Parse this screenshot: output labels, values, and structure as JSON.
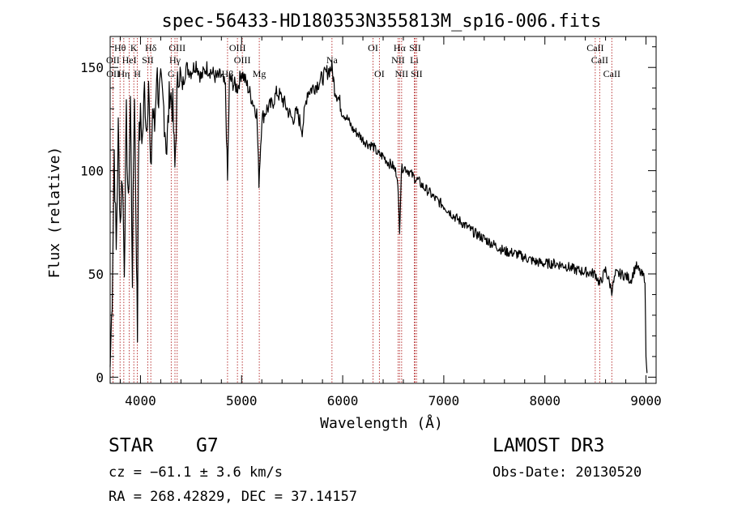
{
  "chart_data": {
    "type": "line",
    "title": "spec-56433-HD180353N355813M_sp16-006.fits",
    "xlabel": "Wavelength (Å)",
    "ylabel": "Flux (relative)",
    "xlim": [
      3700,
      9100
    ],
    "ylim": [
      -3,
      165
    ],
    "xticks": [
      4000,
      5000,
      6000,
      7000,
      8000,
      9000
    ],
    "xtick_labels": [
      "4000",
      "5000",
      "6000",
      "7000",
      "8000",
      "9000"
    ],
    "yticks": [
      0,
      50,
      100,
      150
    ],
    "ytick_labels": [
      "0",
      "50",
      "100",
      "150"
    ],
    "series": [
      {
        "name": "spectrum",
        "x": [
          3700,
          3720,
          3740,
          3760,
          3780,
          3800,
          3820,
          3840,
          3860,
          3880,
          3900,
          3920,
          3940,
          3960,
          3970,
          3980,
          4000,
          4020,
          4040,
          4060,
          4080,
          4100,
          4120,
          4140,
          4160,
          4180,
          4200,
          4230,
          4260,
          4290,
          4320,
          4340,
          4360,
          4380,
          4410,
          4450,
          4500,
          4550,
          4600,
          4650,
          4700,
          4750,
          4800,
          4840,
          4861,
          4880,
          4920,
          4960,
          5000,
          5050,
          5100,
          5150,
          5172,
          5200,
          5250,
          5300,
          5350,
          5400,
          5450,
          5500,
          5550,
          5600,
          5650,
          5700,
          5750,
          5800,
          5850,
          5893,
          5920,
          5960,
          6000,
          6050,
          6100,
          6150,
          6200,
          6250,
          6300,
          6350,
          6400,
          6450,
          6500,
          6540,
          6563,
          6580,
          6600,
          6650,
          6700,
          6750,
          6800,
          6850,
          6900,
          6950,
          7000,
          7100,
          7200,
          7300,
          7400,
          7500,
          7600,
          7700,
          7800,
          7900,
          8000,
          8100,
          8200,
          8300,
          8400,
          8500,
          8542,
          8600,
          8662,
          8700,
          8750,
          8800,
          8850,
          8900,
          8950,
          8990,
          9000,
          9010
        ],
        "y": [
          5,
          40,
          110,
          60,
          120,
          75,
          100,
          55,
          125,
          80,
          135,
          50,
          140,
          60,
          20,
          110,
          125,
          115,
          140,
          120,
          145,
          95,
          130,
          120,
          150,
          135,
          140,
          130,
          110,
          140,
          130,
          100,
          135,
          150,
          140,
          150,
          148,
          152,
          145,
          150,
          148,
          145,
          146,
          140,
          95,
          145,
          142,
          140,
          148,
          142,
          135,
          128,
          95,
          125,
          130,
          132,
          138,
          135,
          130,
          125,
          128,
          120,
          138,
          140,
          142,
          145,
          148,
          150,
          140,
          135,
          128,
          125,
          120,
          118,
          115,
          113,
          112,
          108,
          107,
          104,
          102,
          98,
          72,
          100,
          102,
          100,
          97,
          95,
          92,
          90,
          87,
          85,
          83,
          78,
          74,
          70,
          67,
          64,
          61,
          60,
          58,
          56,
          55,
          55,
          54,
          52,
          51,
          50,
          45,
          52,
          42,
          50,
          50,
          49,
          47,
          54,
          50,
          48,
          10,
          2
        ]
      }
    ],
    "lines": [
      {
        "name": "H&#952;",
        "label": "Hθ",
        "x": 3798,
        "row": 1
      },
      {
        "name": "OII",
        "label": "OII",
        "x": 3727,
        "row": 2
      },
      {
        "name": "OII b",
        "label": "OII",
        "x": 3729,
        "row": 3
      },
      {
        "name": "K",
        "label": "K",
        "x": 3934,
        "row": 1
      },
      {
        "name": "HeI",
        "label": "HeI",
        "x": 3889,
        "row": 2
      },
      {
        "name": "Hη",
        "label": "Hη",
        "x": 3835,
        "row": 3
      },
      {
        "name": "H",
        "label": "H",
        "x": 3969,
        "row": 3
      },
      {
        "name": "Hδ",
        "label": "Hδ",
        "x": 4102,
        "row": 1
      },
      {
        "name": "SII",
        "label": "SII",
        "x": 4072,
        "row": 2
      },
      {
        "name": "OIII",
        "label": "OIII",
        "x": 4363,
        "row": 1
      },
      {
        "name": "Hγ",
        "label": "Hγ",
        "x": 4341,
        "row": 2
      },
      {
        "name": "G",
        "label": "G",
        "x": 4304,
        "row": 3
      },
      {
        "name": "OIII 4959",
        "label": "OIII",
        "x": 4959,
        "row": 1
      },
      {
        "name": "OIII 5007",
        "label": "OIII",
        "x": 5007,
        "row": 2
      },
      {
        "name": "Hβ",
        "label": "Hβ",
        "x": 4861,
        "row": 3
      },
      {
        "name": "Mg",
        "label": "Mg",
        "x": 5175,
        "row": 3
      },
      {
        "name": "Na",
        "label": "Na",
        "x": 5894,
        "row": 2
      },
      {
        "name": "OI 6300",
        "label": "OI",
        "x": 6300,
        "row": 1
      },
      {
        "name": "OI 6363",
        "label": "OI",
        "x": 6363,
        "row": 3
      },
      {
        "name": "Hα",
        "label": "Hα",
        "x": 6563,
        "row": 1
      },
      {
        "name": "NII 6548",
        "label": "NII",
        "x": 6548,
        "row": 2
      },
      {
        "name": "NII 6583",
        "label": "NII",
        "x": 6583,
        "row": 3
      },
      {
        "name": "SII 6716",
        "label": "SII",
        "x": 6716,
        "row": 1
      },
      {
        "name": "Li",
        "label": "Li",
        "x": 6708,
        "row": 2
      },
      {
        "name": "SII 6731",
        "label": "SII",
        "x": 6731,
        "row": 3
      },
      {
        "name": "CaII 8498",
        "label": "CaII",
        "x": 8498,
        "row": 1
      },
      {
        "name": "CaII 8542",
        "label": "CaII",
        "x": 8542,
        "row": 2
      },
      {
        "name": "CaII 8662",
        "label": "CaII",
        "x": 8662,
        "row": 3
      }
    ]
  },
  "info": {
    "class_type": "STAR",
    "class_sub": "G7",
    "survey": "LAMOST DR3",
    "cz": "cz = −61.1 ± 3.6 km/s",
    "obs_date": "Obs-Date: 20130520",
    "radec": "RA = 268.42829, DEC =  37.14157"
  },
  "colors": {
    "spectrum": "#000000",
    "line_markers": "#b22222"
  }
}
